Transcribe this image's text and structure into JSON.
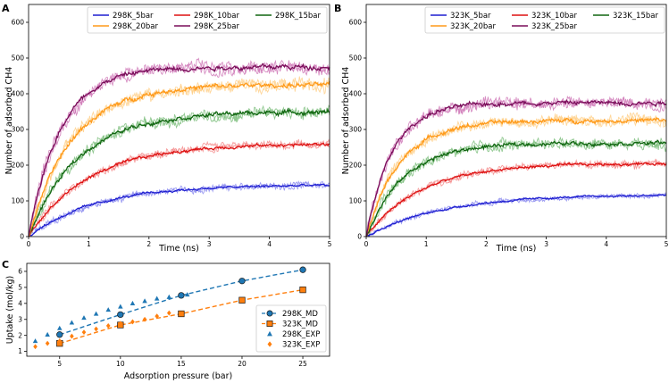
{
  "chart_data": [
    {
      "panel": "A",
      "type": "line",
      "xlabel": "Time (ns)",
      "ylabel": "Number of adsorbed CH4",
      "xlim": [
        0,
        5
      ],
      "ylim": [
        0,
        650
      ],
      "xticks": [
        "0",
        "1",
        "2",
        "3",
        "4",
        "5"
      ],
      "yticks": [
        "0",
        "100",
        "200",
        "300",
        "400",
        "500",
        "600"
      ],
      "legend_position": "top",
      "series": [
        {
          "name": "298K_5bar",
          "plateau": 145,
          "rate": 0.9,
          "color": "#1f1fd0",
          "light": "#8c8cf0",
          "noise": 8
        },
        {
          "name": "298K_10bar",
          "plateau": 260,
          "rate": 1.0,
          "color": "#dd1111",
          "light": "#f48c8c",
          "noise": 10
        },
        {
          "name": "298K_15bar",
          "plateau": 350,
          "rate": 1.2,
          "color": "#116611",
          "light": "#7fbf7f",
          "noise": 14
        },
        {
          "name": "298K_20bar",
          "plateau": 425,
          "rate": 1.4,
          "color": "#ff9a1a",
          "light": "#ffd08a",
          "noise": 16
        },
        {
          "name": "298K_25bar",
          "plateau": 475,
          "rate": 1.9,
          "color": "#7a0d5a",
          "light": "#d07ab8",
          "noise": 16
        }
      ]
    },
    {
      "panel": "B",
      "type": "line",
      "xlabel": "Time (ns)",
      "ylabel": "Number of adsorbed CH4",
      "xlim": [
        0,
        5
      ],
      "ylim": [
        0,
        650
      ],
      "xticks": [
        "0",
        "1",
        "2",
        "3",
        "4",
        "5"
      ],
      "yticks": [
        "0",
        "100",
        "200",
        "300",
        "400",
        "500",
        "600"
      ],
      "legend_position": "top",
      "series": [
        {
          "name": "323K_5bar",
          "plateau": 118,
          "rate": 0.8,
          "color": "#1f1fd0",
          "light": "#8c8cf0",
          "noise": 6
        },
        {
          "name": "323K_10bar",
          "plateau": 205,
          "rate": 1.1,
          "color": "#dd1111",
          "light": "#f48c8c",
          "noise": 9
        },
        {
          "name": "323K_15bar",
          "plateau": 262,
          "rate": 1.6,
          "color": "#116611",
          "light": "#7fbf7f",
          "noise": 13
        },
        {
          "name": "323K_20bar",
          "plateau": 325,
          "rate": 1.8,
          "color": "#ff9a1a",
          "light": "#ffd08a",
          "noise": 14
        },
        {
          "name": "323K_25bar",
          "plateau": 375,
          "rate": 2.3,
          "color": "#7a0d5a",
          "light": "#d07ab8",
          "noise": 15
        }
      ]
    },
    {
      "panel": "C",
      "type": "scatter",
      "xlabel": "Adsorption pressure (bar)",
      "ylabel": "Uptake (mol/kg)",
      "xlim": [
        2.3,
        27.2
      ],
      "ylim": [
        0.7,
        6.5
      ],
      "xticks": [
        "5",
        "10",
        "15",
        "20",
        "25"
      ],
      "yticks": [
        "1",
        "2",
        "3",
        "4",
        "5",
        "6"
      ],
      "legend_position": "center-right",
      "series": [
        {
          "name": "298K_MD",
          "marker": "circle",
          "dashed": true,
          "color": "#1f77b4",
          "x": [
            5,
            10,
            15,
            20,
            25
          ],
          "y": [
            2.05,
            3.3,
            4.5,
            5.4,
            6.1
          ]
        },
        {
          "name": "323K_MD",
          "marker": "square",
          "dashed": true,
          "color": "#ff7f0e",
          "x": [
            5,
            10,
            15,
            20,
            25
          ],
          "y": [
            1.5,
            2.65,
            3.35,
            4.2,
            4.85
          ]
        },
        {
          "name": "298K_EXP",
          "marker": "triangle",
          "dashed": false,
          "color": "#1f77b4",
          "x": [
            3,
            4,
            5,
            6,
            7,
            8,
            9,
            10,
            11,
            12,
            13,
            14,
            15,
            15.5
          ],
          "y": [
            1.65,
            2.05,
            2.45,
            2.8,
            3.1,
            3.35,
            3.6,
            3.8,
            4.0,
            4.15,
            4.3,
            4.4,
            4.5,
            4.55
          ]
        },
        {
          "name": "323K_EXP",
          "marker": "diamond",
          "dashed": false,
          "color": "#ff7f0e",
          "x": [
            3,
            4,
            5,
            6,
            7,
            8,
            9,
            10,
            11,
            12,
            13,
            14
          ],
          "y": [
            1.3,
            1.5,
            1.65,
            1.95,
            2.2,
            2.4,
            2.6,
            2.75,
            2.85,
            3.0,
            3.2,
            3.4
          ]
        }
      ]
    }
  ]
}
